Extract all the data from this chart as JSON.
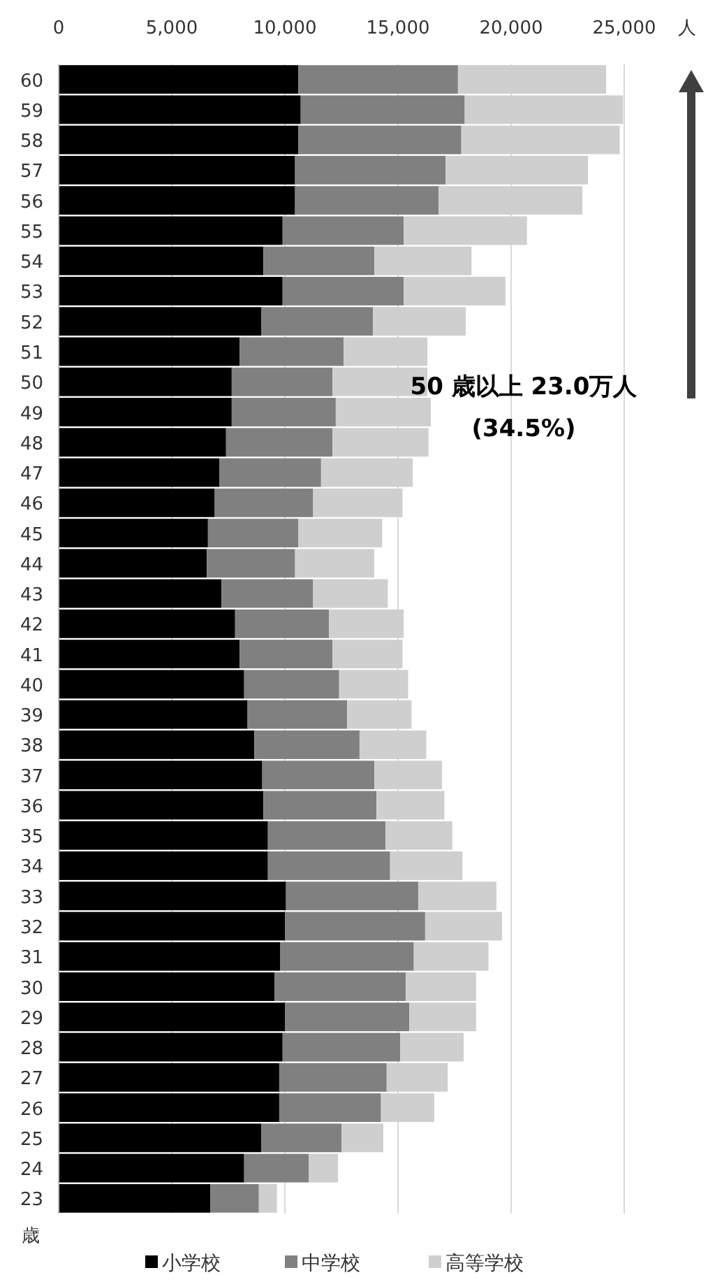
{
  "chart_data": {
    "type": "bar",
    "orientation": "horizontal",
    "stacked": true,
    "categories": [
      "60",
      "59",
      "58",
      "57",
      "56",
      "55",
      "54",
      "53",
      "52",
      "51",
      "50",
      "49",
      "48",
      "47",
      "46",
      "45",
      "44",
      "43",
      "42",
      "41",
      "40",
      "39",
      "38",
      "37",
      "36",
      "35",
      "34",
      "33",
      "32",
      "31",
      "30",
      "29",
      "28",
      "27",
      "26",
      "25",
      "24",
      "23"
    ],
    "series": [
      {
        "name": "小学校",
        "color": "#000000",
        "values": [
          10600,
          10700,
          10600,
          10450,
          10450,
          9900,
          9050,
          9900,
          8950,
          8000,
          7650,
          7650,
          7400,
          7100,
          6900,
          6600,
          6550,
          7200,
          7800,
          8000,
          8200,
          8350,
          8650,
          9000,
          9050,
          9250,
          9250,
          10050,
          10000,
          9800,
          9550,
          10000,
          9900,
          9750,
          9750,
          8950,
          8200,
          6700
        ]
      },
      {
        "name": "中学校",
        "color": "#808080",
        "values": [
          7050,
          7250,
          7200,
          6650,
          6350,
          5350,
          4900,
          5350,
          4950,
          4600,
          4450,
          4600,
          4700,
          4500,
          4350,
          4000,
          3900,
          4050,
          4150,
          4100,
          4200,
          4400,
          4650,
          4950,
          5000,
          5200,
          5400,
          5850,
          6200,
          5900,
          5800,
          5500,
          5200,
          4750,
          4500,
          3550,
          2850,
          2150
        ]
      },
      {
        "name": "高等学校",
        "color": "#d0cfd0",
        "values": [
          6550,
          7000,
          7000,
          6300,
          6350,
          5450,
          4300,
          4500,
          4100,
          3700,
          4200,
          4200,
          4250,
          4050,
          3950,
          3700,
          3500,
          3300,
          3300,
          3100,
          3050,
          2850,
          2950,
          3000,
          3000,
          2950,
          3200,
          3450,
          3400,
          3300,
          3100,
          2950,
          2800,
          2700,
          2350,
          1850,
          1300,
          800
        ]
      }
    ],
    "xlim": [
      0,
      25000
    ],
    "xticks": [
      {
        "value": 0,
        "label": "0"
      },
      {
        "value": 5000,
        "label": "5,000"
      },
      {
        "value": 10000,
        "label": "10,000"
      },
      {
        "value": 15000,
        "label": "15,000"
      },
      {
        "value": 20000,
        "label": "20,000"
      },
      {
        "value": 25000,
        "label": "25,000"
      }
    ],
    "xlabel": "人",
    "ylabel": "歳",
    "grid": "x",
    "legend": "bottom",
    "annotations": [
      "50 歳以上 23.0万人",
      "(34.5%)"
    ]
  }
}
